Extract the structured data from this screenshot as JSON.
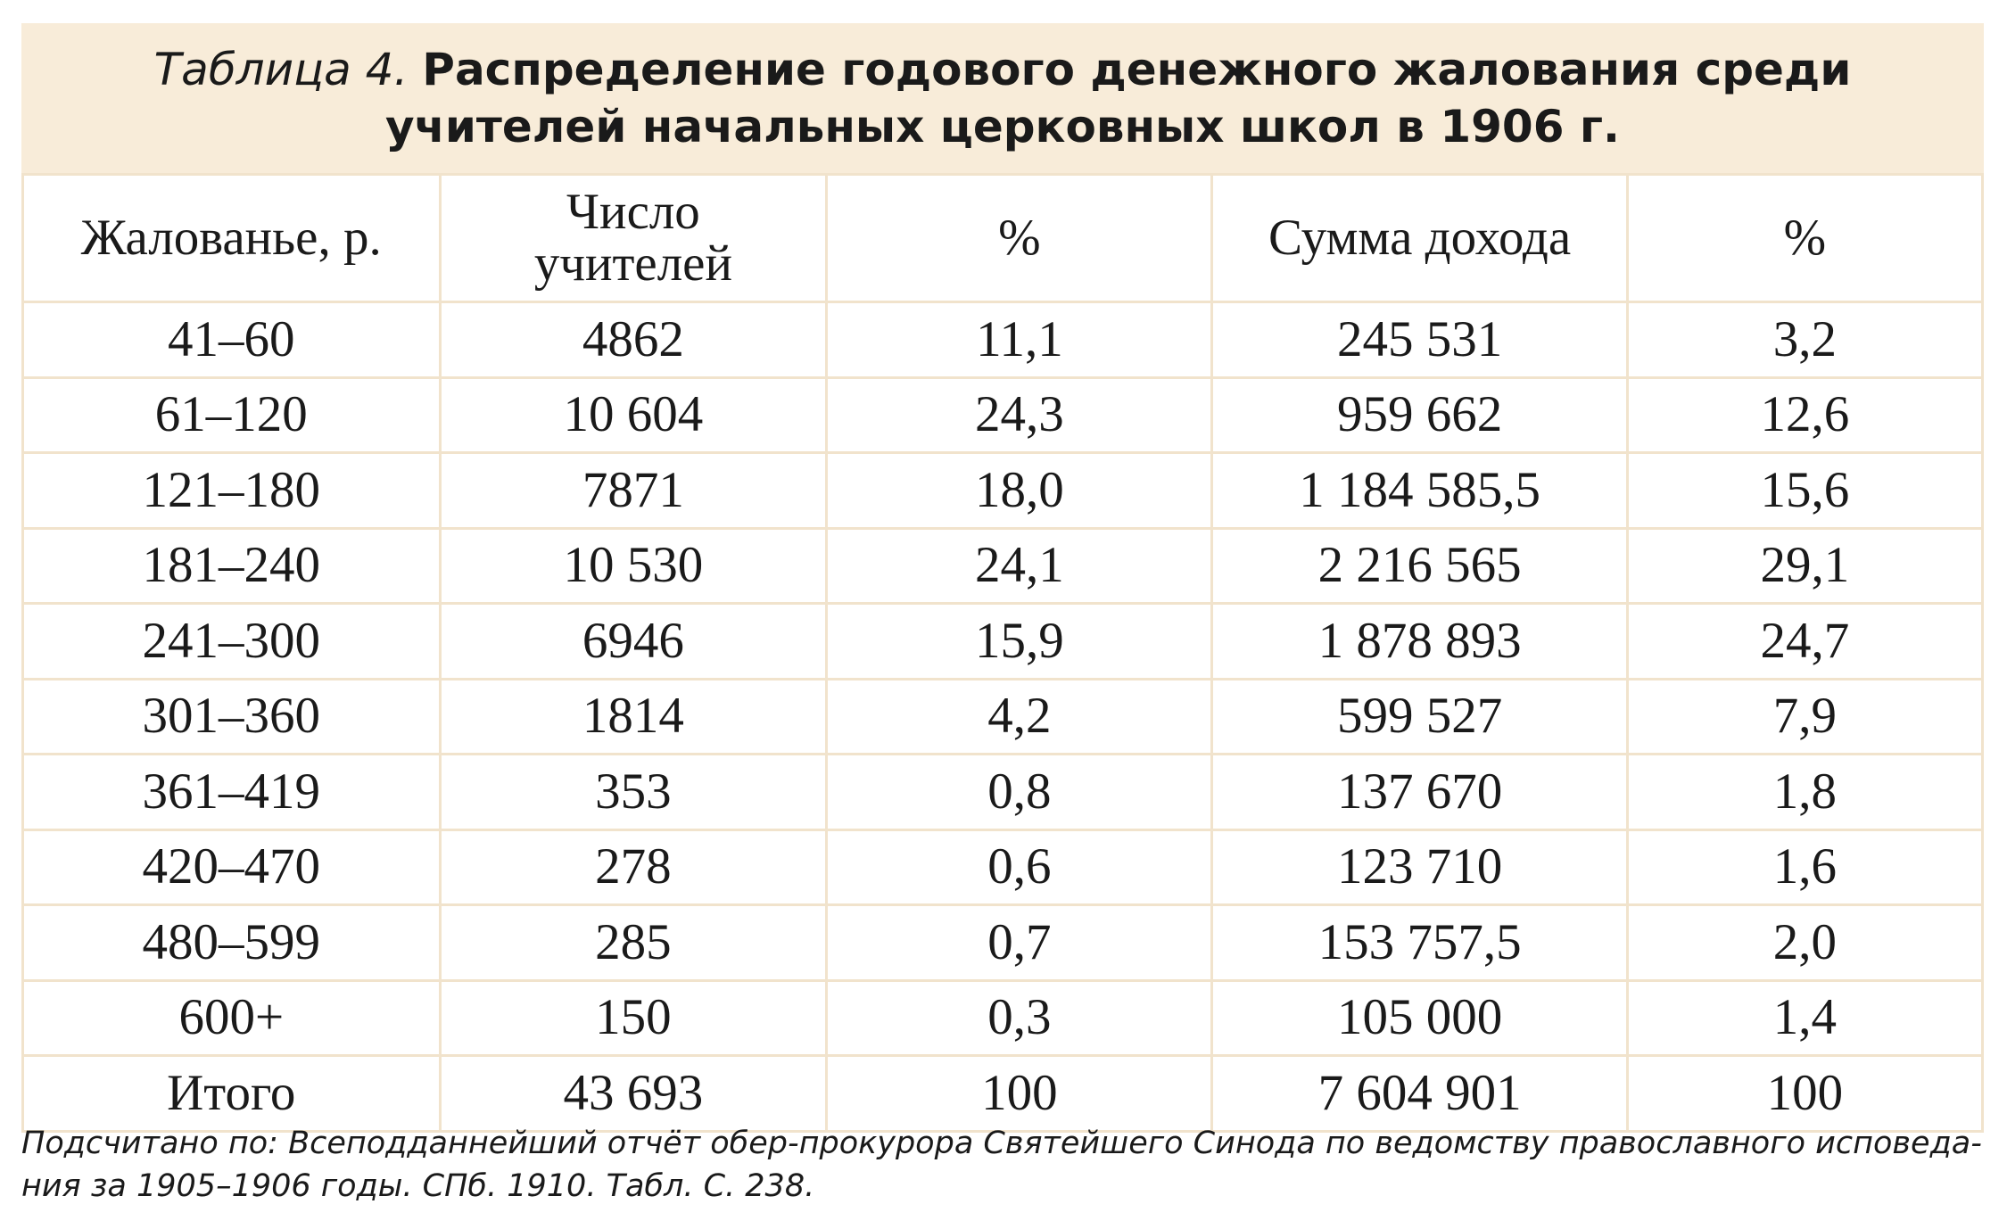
{
  "title": {
    "label": "Таблица 4.",
    "text": "Распределение годового денежного жалования среди учителей начальных церковных школ в 1906 г."
  },
  "table": {
    "header": [
      "Жалованье, р.",
      "Число учителей",
      "%",
      "Сумма дохода",
      "%"
    ],
    "rows": [
      [
        "41–60",
        "4862",
        "11,1",
        "245 531",
        "3,2"
      ],
      [
        "61–120",
        "10 604",
        "24,3",
        "959 662",
        "12,6"
      ],
      [
        "121–180",
        "7871",
        "18,0",
        "1 184 585,5",
        "15,6"
      ],
      [
        "181–240",
        "10 530",
        "24,1",
        "2 216 565",
        "29,1"
      ],
      [
        "241–300",
        "6946",
        "15,9",
        "1 878 893",
        "24,7"
      ],
      [
        "301–360",
        "1814",
        "4,2",
        "599 527",
        "7,9"
      ],
      [
        "361–419",
        "353",
        "0,8",
        "137 670",
        "1,8"
      ],
      [
        "420–470",
        "278",
        "0,6",
        "123 710",
        "1,6"
      ],
      [
        "480–599",
        "285",
        "0,7",
        "153 757,5",
        "2,0"
      ],
      [
        "600+",
        "150",
        "0,3",
        "105 000",
        "1,4"
      ],
      [
        "Итого",
        "43 693",
        "100",
        "7 604 901",
        "100"
      ]
    ]
  },
  "footnote": [
    "Подсчитано по: Всеподданнейший отчёт обер-прокурора Святейшего Синода по ведомству православного исповеда-",
    "ния за 1905–1906 годы. СПб. 1910. Табл. С. 238."
  ]
}
